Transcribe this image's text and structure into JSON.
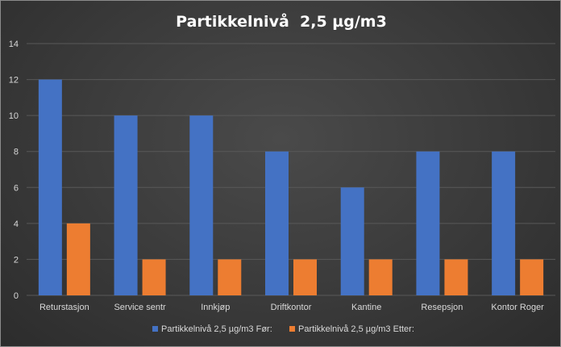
{
  "chart_data": {
    "type": "bar",
    "title": "Partikkelnivå  2,5 µg/m3",
    "categories": [
      "Returstasjon",
      "Service sentr",
      "Innkjøp",
      "Driftkontor",
      "Kantine",
      "Resepsjon",
      "Kontor Roger"
    ],
    "series": [
      {
        "name": "Partikkelnivå 2,5 µg/m3 Før:",
        "values": [
          12,
          10,
          10,
          8,
          6,
          8,
          8
        ],
        "color": "#4472c4"
      },
      {
        "name": "Partikkelnivå 2,5 µg/m3 Etter:",
        "values": [
          4,
          2,
          2,
          2,
          2,
          2,
          2
        ],
        "color": "#ed7d31"
      }
    ],
    "ylim": [
      0,
      14
    ],
    "yticks": [
      "0",
      "2",
      "4",
      "6",
      "8",
      "10",
      "12",
      "14"
    ],
    "grid": true,
    "legend_position": "bottom",
    "background": "#404040",
    "gridline_color": "#595959"
  }
}
